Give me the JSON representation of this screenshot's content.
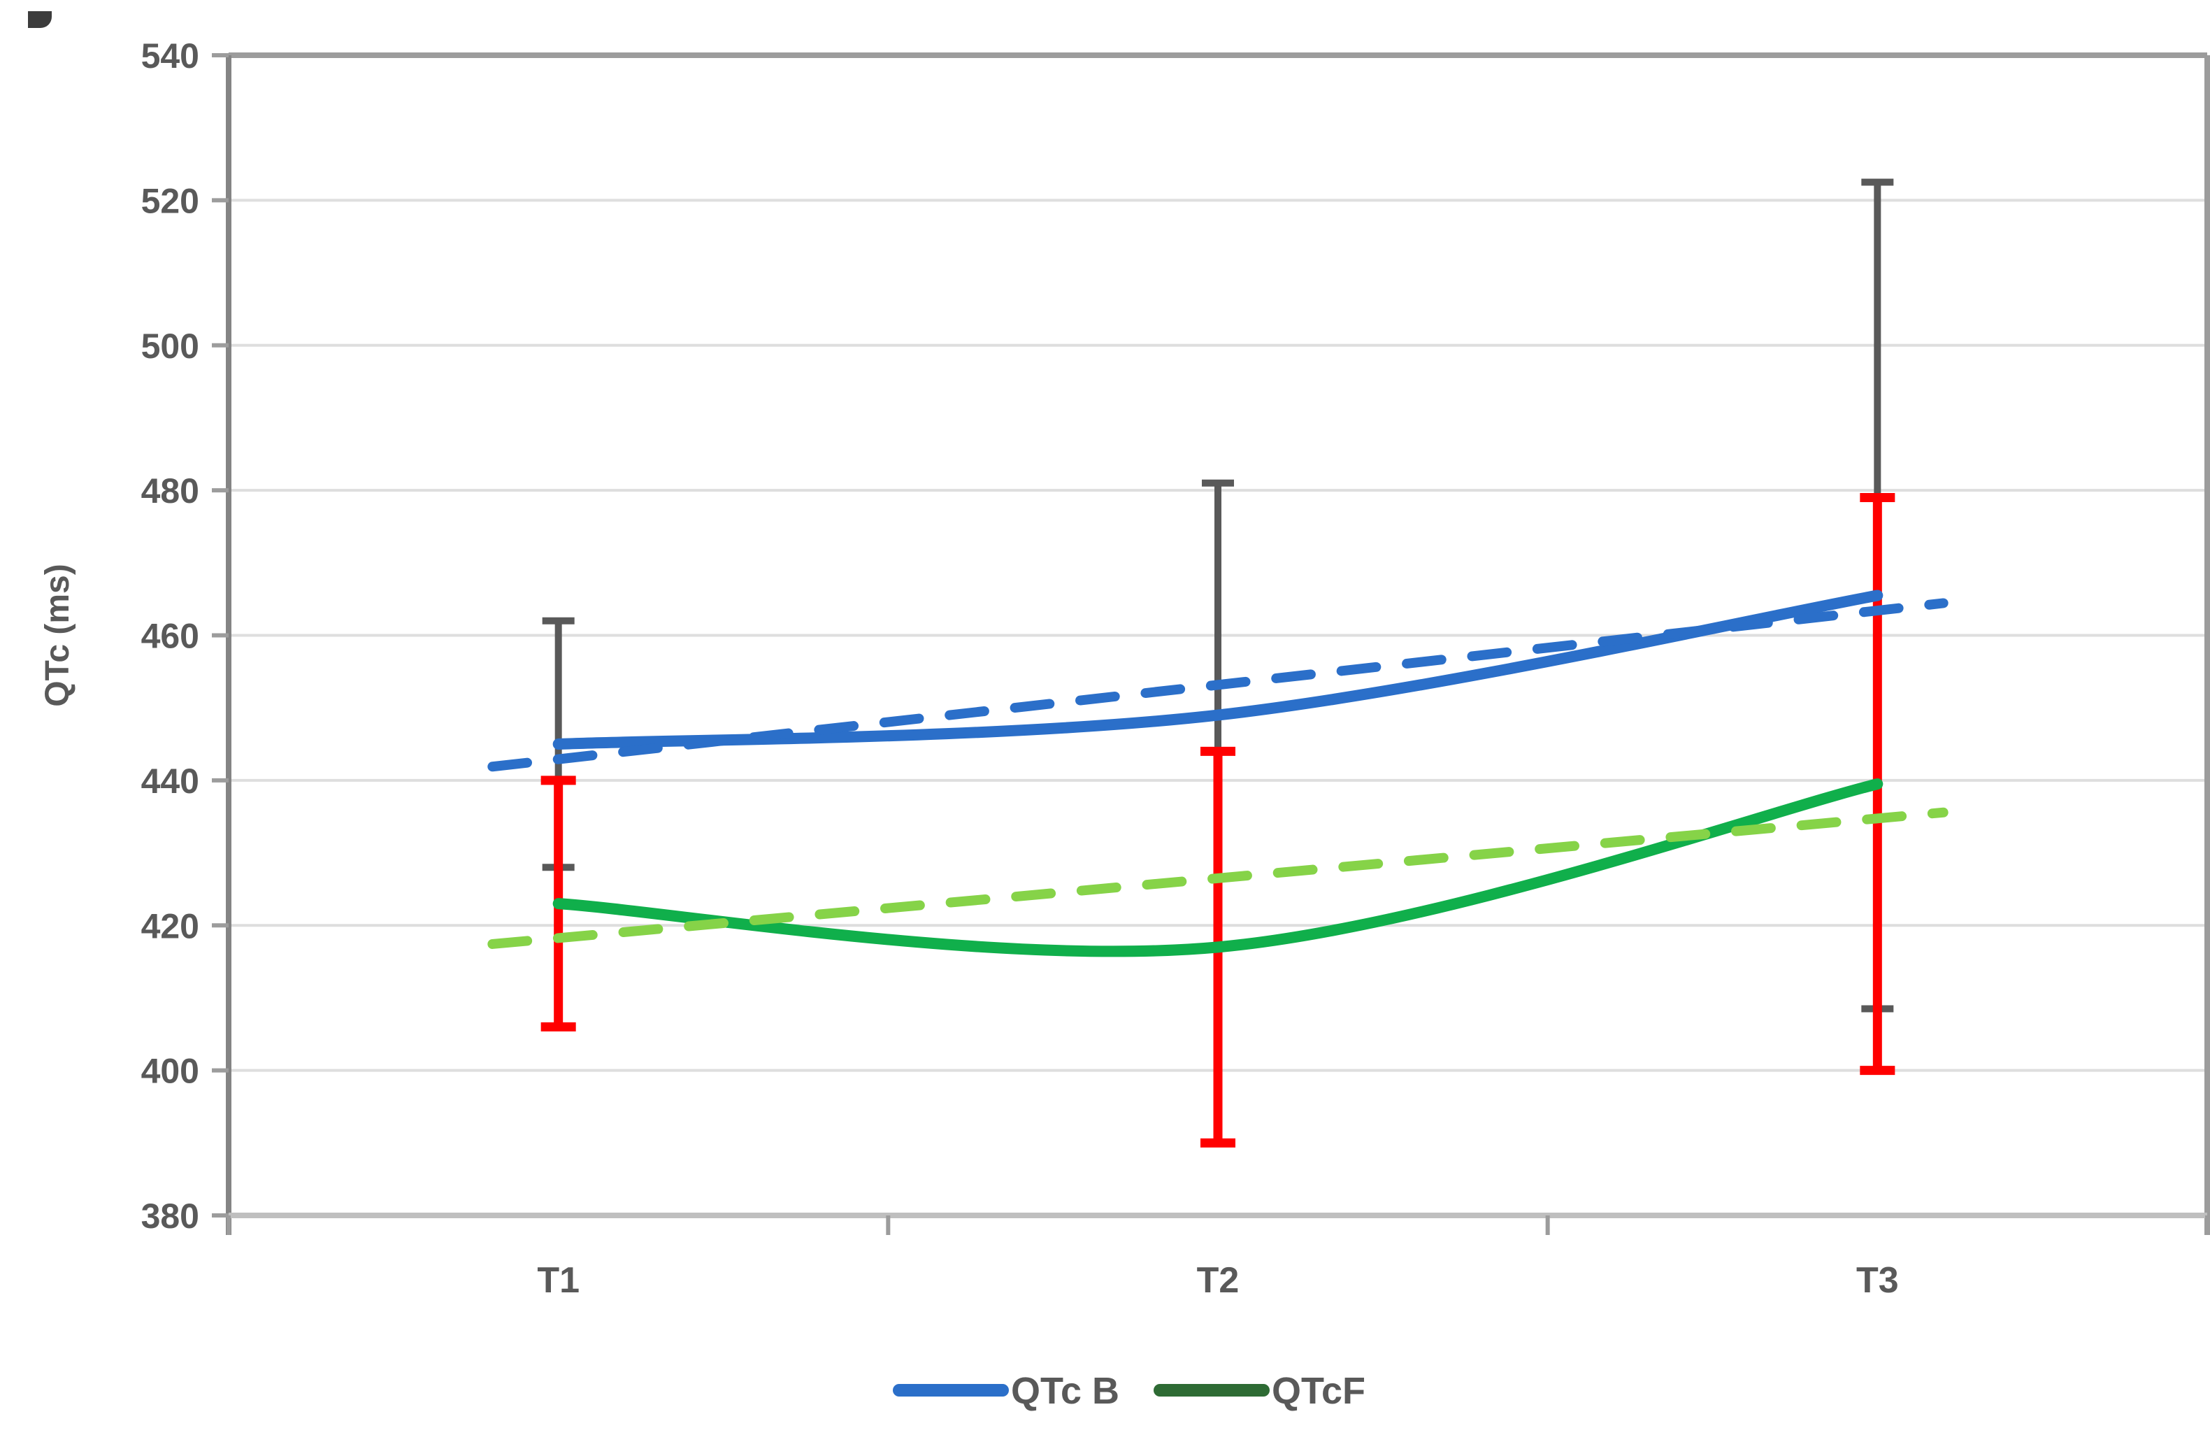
{
  "figure": {
    "background": "#FFFFFF",
    "corner_artifact_color": "#3C3C3C"
  },
  "chart_data": {
    "type": "line",
    "title": "",
    "categories": [
      "T1",
      "T2",
      "T3"
    ],
    "series": [
      {
        "name": "QTc B",
        "values": [
          445,
          449,
          465.5
        ],
        "error_plus_minus": [
          17,
          32,
          57
        ],
        "line_color": "#2B6FC9",
        "error_bar_color": "#595959",
        "line_style": "solid",
        "smooth": true
      },
      {
        "name": "QTcF",
        "values": [
          423,
          417,
          439.5
        ],
        "error_plus_minus": [
          17,
          27,
          39.5
        ],
        "line_color": "#10AF4B",
        "error_bar_color": "#FF0000",
        "line_style": "solid",
        "smooth": true
      }
    ],
    "trendlines": [
      {
        "series": "QTc B",
        "type": "linear",
        "color": "#2B6FC9",
        "dashed": true,
        "extend_categories": 0.1
      },
      {
        "series": "QTcF",
        "type": "linear",
        "color": "#86D348",
        "dashed": true,
        "extend_categories": 0.1
      }
    ],
    "xlabel": "",
    "ylabel": "QTc (ms)",
    "ylim": [
      380,
      540
    ],
    "ytick_step": 20,
    "yticks": [
      "380",
      "400",
      "420",
      "440",
      "460",
      "480",
      "500",
      "520",
      "540"
    ],
    "grid": true,
    "legend": {
      "position": "bottom-center",
      "items": [
        {
          "label": "QTc B",
          "color": "#2B6FC9"
        },
        {
          "label": "QTcF",
          "color": "#2E6B34"
        }
      ]
    }
  },
  "colors": {
    "gridline": "#DEDEDE",
    "axis_left": "#848484",
    "axis_bottom": "#BFBFBF",
    "border_top": "#9C9C9C",
    "border_right": "#9C9C9C",
    "tick": "#9C9C9C",
    "label": "#595959"
  }
}
